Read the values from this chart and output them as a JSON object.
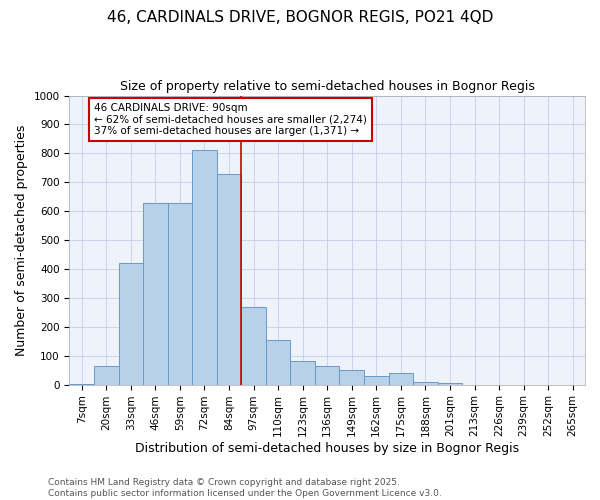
{
  "title": "46, CARDINALS DRIVE, BOGNOR REGIS, PO21 4QD",
  "subtitle": "Size of property relative to semi-detached houses in Bognor Regis",
  "xlabel": "Distribution of semi-detached houses by size in Bognor Regis",
  "ylabel": "Number of semi-detached properties",
  "categories": [
    "7sqm",
    "20sqm",
    "33sqm",
    "46sqm",
    "59sqm",
    "72sqm",
    "84sqm",
    "97sqm",
    "110sqm",
    "123sqm",
    "136sqm",
    "149sqm",
    "162sqm",
    "175sqm",
    "188sqm",
    "201sqm",
    "213sqm",
    "226sqm",
    "239sqm",
    "252sqm",
    "265sqm"
  ],
  "values": [
    2,
    65,
    420,
    630,
    630,
    810,
    730,
    270,
    155,
    80,
    65,
    50,
    30,
    40,
    10,
    5,
    0,
    0,
    0,
    0,
    0
  ],
  "bar_color": "#b8d0e8",
  "bar_edgecolor": "#6699cc",
  "property_line_color": "#cc0000",
  "annotation_text": "46 CARDINALS DRIVE: 90sqm\n← 62% of semi-detached houses are smaller (2,274)\n37% of semi-detached houses are larger (1,371) →",
  "annotation_box_edgecolor": "#cc0000",
  "ylim": [
    0,
    1000
  ],
  "yticks": [
    0,
    100,
    200,
    300,
    400,
    500,
    600,
    700,
    800,
    900,
    1000
  ],
  "footer": "Contains HM Land Registry data © Crown copyright and database right 2025.\nContains public sector information licensed under the Open Government Licence v3.0.",
  "background_color": "#eef2fa",
  "grid_color": "#c5d0e8",
  "title_fontsize": 11,
  "subtitle_fontsize": 9,
  "axis_label_fontsize": 9,
  "tick_fontsize": 7.5,
  "footer_fontsize": 6.5,
  "annotation_fontsize": 7.5
}
